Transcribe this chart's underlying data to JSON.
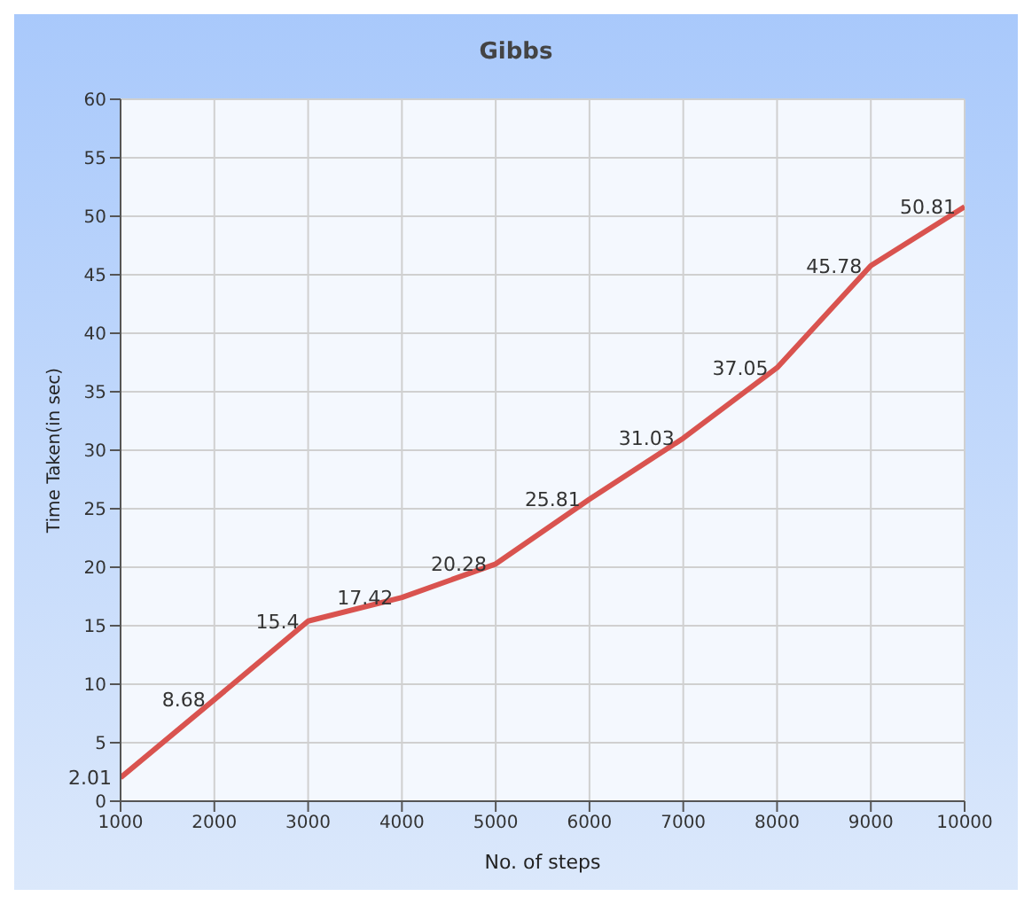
{
  "chart_data": {
    "type": "line",
    "title": "Gibbs",
    "xlabel": "No. of steps",
    "ylabel": "Time Taken(in sec)",
    "x": [
      1000,
      2000,
      3000,
      4000,
      5000,
      6000,
      7000,
      8000,
      9000,
      10000
    ],
    "series": [
      {
        "color": "#d9534f",
        "values": [
          2.01,
          8.68,
          15.4,
          17.42,
          20.28,
          25.81,
          31.03,
          37.05,
          45.78,
          50.81
        ]
      }
    ],
    "xlim": [
      1000,
      10000
    ],
    "xticks": [
      1000,
      2000,
      3000,
      4000,
      5000,
      6000,
      7000,
      8000,
      9000,
      10000
    ],
    "ylim": [
      0,
      60
    ],
    "yticks": [
      0,
      5,
      10,
      15,
      20,
      25,
      30,
      35,
      40,
      45,
      50,
      55,
      60
    ],
    "grid": true,
    "data_labels": true,
    "marker": "none",
    "line_style": "solid"
  }
}
